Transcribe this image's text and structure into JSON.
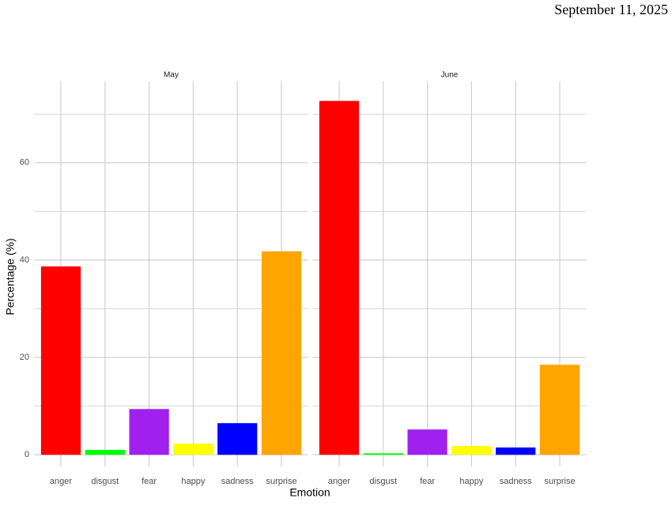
{
  "date": "September 11, 2025",
  "chart_data": {
    "type": "bar",
    "x_label": "Emotion",
    "y_label": "Percentage (%)",
    "categories": [
      "anger",
      "disgust",
      "fear",
      "happy",
      "sadness",
      "surprise"
    ],
    "colors": [
      "#ff0000",
      "#00ff00",
      "#a020f0",
      "#ffff00",
      "#0000ff",
      "#ffa500"
    ],
    "ylim": [
      -2.4,
      76.7
    ],
    "yticks": [
      0,
      20,
      40,
      60
    ],
    "y_minor_ticks": [
      10,
      30,
      50,
      70
    ],
    "grid": true,
    "facets": [
      {
        "title": "May",
        "values": [
          38.7,
          1.0,
          9.4,
          2.3,
          6.5,
          41.8
        ]
      },
      {
        "title": "June",
        "values": [
          72.7,
          0.3,
          5.2,
          1.8,
          1.5,
          18.5
        ]
      }
    ]
  }
}
